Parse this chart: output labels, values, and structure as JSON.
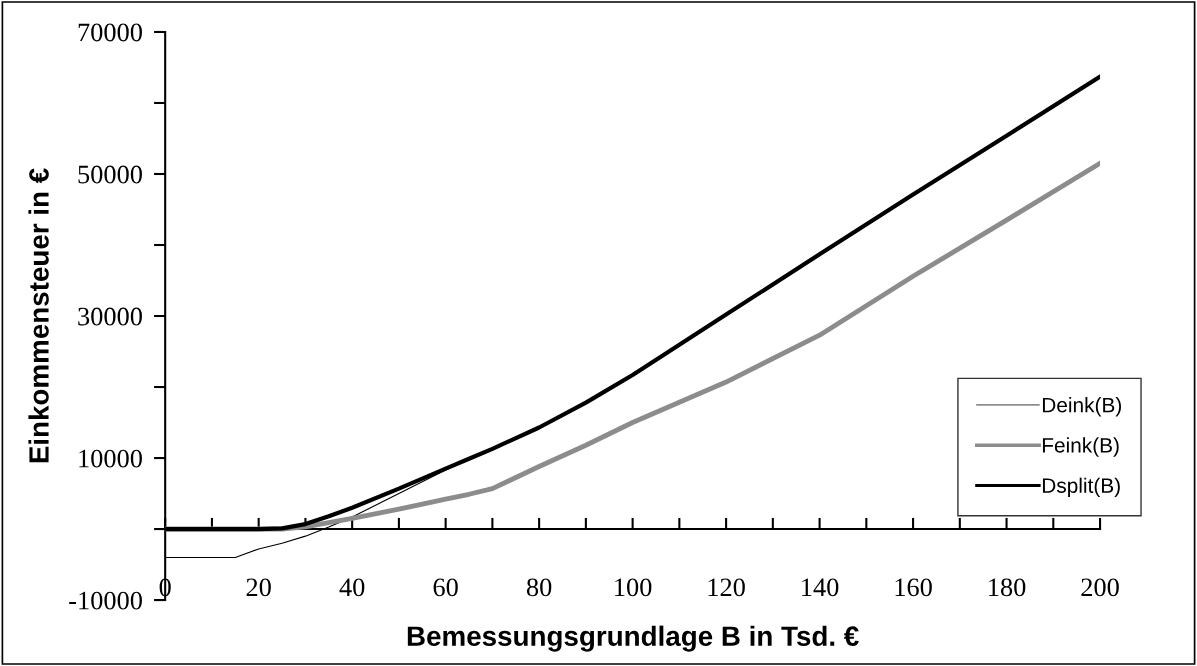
{
  "chart_data": {
    "type": "line",
    "xlabel": "Bemessungsgrundlage B in Tsd. €",
    "ylabel": "Einkommensteuer in €",
    "x": [
      0,
      10,
      15,
      20,
      25,
      30,
      35,
      40,
      50,
      60,
      65,
      70,
      80,
      90,
      100,
      120,
      140,
      160,
      180,
      200
    ],
    "series": [
      {
        "name": "Deink(B)",
        "color": "#000000",
        "values": [
          -4000,
          -4000,
          -4000,
          -2800,
          -2000,
          -1000,
          300,
          1700,
          5000,
          8300,
          9800,
          11200,
          14200,
          17700,
          21600,
          30100,
          38600,
          47000,
          55300,
          63600
        ]
      },
      {
        "name": "Feink(B)",
        "color": "#8c8c8c",
        "values": [
          0,
          0,
          0,
          0,
          0,
          300,
          900,
          1500,
          2800,
          4200,
          4900,
          5700,
          8800,
          11800,
          15000,
          20700,
          27300,
          35600,
          43500,
          51500
        ]
      },
      {
        "name": "Dsplit(B)",
        "color": "#000000",
        "values": [
          0,
          0,
          0,
          0,
          100,
          700,
          1800,
          3000,
          5700,
          8500,
          9900,
          11300,
          14300,
          17800,
          21700,
          30200,
          38700,
          47100,
          55400,
          63700
        ]
      }
    ],
    "xlim": [
      0,
      200
    ],
    "ylim": [
      -10000,
      70000
    ],
    "xticks": [
      0,
      {
        "value": 10,
        "label": null
      },
      20,
      {
        "value": 30,
        "label": null
      },
      40,
      {
        "value": 50,
        "label": null
      },
      60,
      {
        "value": 70,
        "label": null
      },
      80,
      {
        "value": 90,
        "label": null
      },
      100,
      {
        "value": 110,
        "label": null
      },
      120,
      {
        "value": 130,
        "label": null
      },
      140,
      {
        "value": 150,
        "label": null
      },
      160,
      {
        "value": 170,
        "label": null
      },
      180,
      {
        "value": 190,
        "label": null
      },
      200
    ],
    "yticks": [
      -10000,
      {
        "value": 0,
        "label": null
      },
      10000,
      {
        "value": 20000,
        "label": null
      },
      30000,
      {
        "value": 40000,
        "label": null
      },
      50000,
      {
        "value": 60000,
        "label": null
      },
      70000
    ],
    "legend": "lower right"
  }
}
